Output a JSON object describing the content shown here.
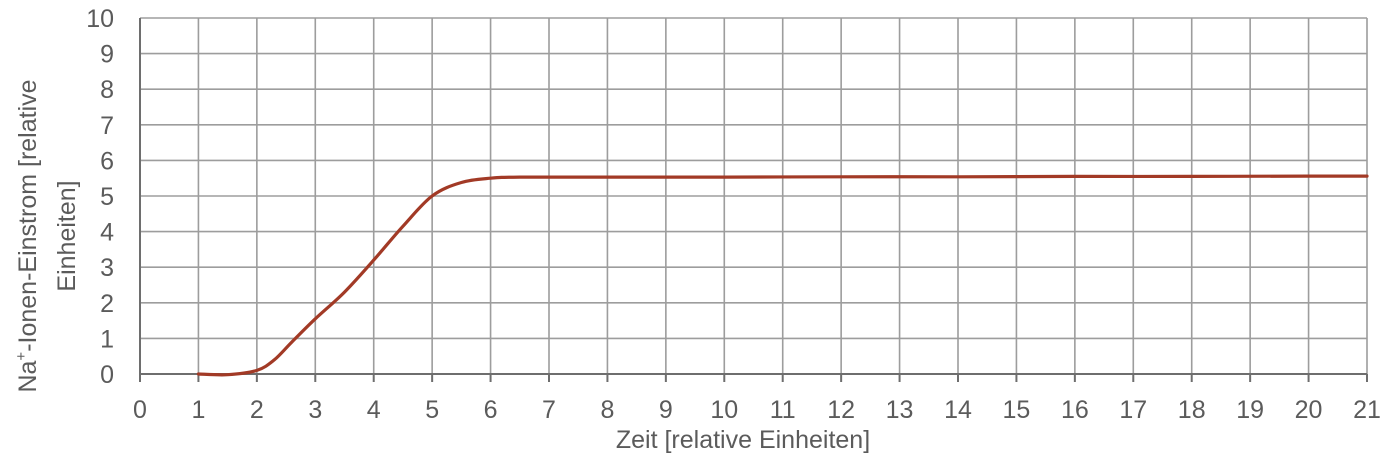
{
  "chart_data": {
    "type": "line",
    "title": "",
    "xlabel": "Zeit [relative Einheiten]",
    "ylabel": {
      "base": "Na",
      "superscript": "+",
      "rest_line1": "-Ionen-Einstrom [relative",
      "line2": "Einheiten]"
    },
    "xlim": [
      0,
      21
    ],
    "ylim": [
      0,
      10
    ],
    "x_ticks": [
      "0",
      "1",
      "2",
      "3",
      "4",
      "5",
      "6",
      "7",
      "8",
      "9",
      "10",
      "11",
      "12",
      "13",
      "14",
      "15",
      "16",
      "17",
      "18",
      "19",
      "20",
      "21"
    ],
    "y_ticks": [
      "0",
      "1",
      "2",
      "3",
      "4",
      "5",
      "6",
      "7",
      "8",
      "9",
      "10"
    ],
    "grid": true,
    "legend": "none",
    "series": [
      {
        "color": "#a23a26",
        "x": [
          1,
          1.5,
          2,
          2.3,
          2.6,
          3,
          3.5,
          4,
          4.5,
          5,
          5.5,
          6,
          6.5,
          8,
          10,
          12,
          14,
          16,
          18,
          20,
          21
        ],
        "y": [
          0,
          -0.02,
          0.1,
          0.4,
          0.9,
          1.55,
          2.3,
          3.2,
          4.15,
          5.0,
          5.38,
          5.5,
          5.53,
          5.53,
          5.53,
          5.54,
          5.54,
          5.55,
          5.55,
          5.56,
          5.56
        ]
      }
    ]
  }
}
